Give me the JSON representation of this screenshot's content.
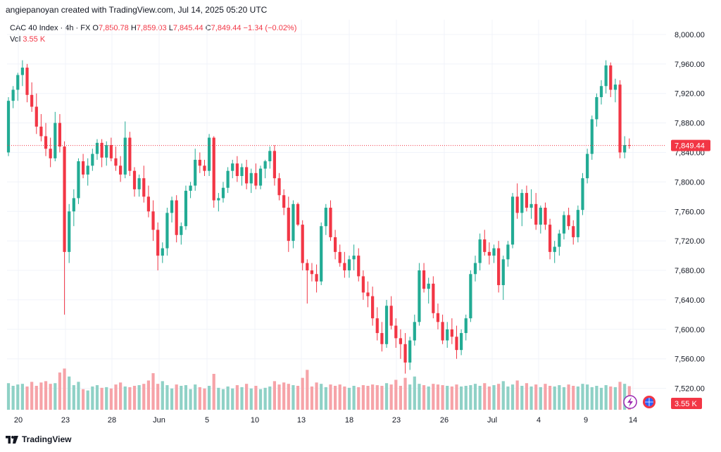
{
  "header": {
    "credit": "angiepanoyan created with TradingView.com, Jul 14, 2025 05:20 UTC"
  },
  "legend": {
    "symbol": "CAC 40 Index · 4h · FX",
    "o_label": "O",
    "o_value": "7,850.78",
    "h_label": "H",
    "h_value": "7,859.03",
    "l_label": "L",
    "l_value": "7,845.44",
    "c_label": "C",
    "c_value": "7,849.44",
    "change": "−1.34 (−0.02%)",
    "vol_label": "Vol",
    "vol_value": "3.55 K"
  },
  "footer": {
    "brand": "TradingView"
  },
  "icons": [
    "flash-icon",
    "globe-icon",
    "tradingview-logo-icon"
  ],
  "colors": {
    "up": "#22ab94",
    "down": "#f23645",
    "up_vol": "#8fd1c6",
    "down_vol": "#f6a3a8",
    "grid": "#f0f3fa"
  },
  "chart_data": {
    "type": "candlestick",
    "title": "CAC 40 Index · 4h · FX",
    "ylim": [
      7490,
      8020
    ],
    "y_ticks": [
      "8,000.00",
      "7,960.00",
      "7,920.00",
      "7,880.00",
      "7,840.00",
      "7,800.00",
      "7,760.00",
      "7,720.00",
      "7,680.00",
      "7,640.00",
      "7,600.00",
      "7,560.00",
      "7,520.00"
    ],
    "x_ticks": [
      "20",
      "23",
      "28",
      "Jun",
      "5",
      "10",
      "13",
      "18",
      "23",
      "26",
      "Jul",
      "4",
      "9",
      "14"
    ],
    "last_price": "7,849.44",
    "last_volume": "3.55 K",
    "volume_max": 9,
    "grid": true,
    "candles": [
      [
        7840,
        7915,
        7835,
        7910,
        4.0
      ],
      [
        7910,
        7930,
        7900,
        7925,
        3.6
      ],
      [
        7925,
        7948,
        7910,
        7945,
        3.8
      ],
      [
        7945,
        7965,
        7930,
        7955,
        3.9
      ],
      [
        7955,
        7960,
        7908,
        7918,
        3.5
      ],
      [
        7918,
        7935,
        7895,
        7902,
        4.2
      ],
      [
        7902,
        7920,
        7865,
        7875,
        3.6
      ],
      [
        7875,
        7892,
        7855,
        7862,
        4.1
      ],
      [
        7862,
        7880,
        7835,
        7845,
        4.3
      ],
      [
        7845,
        7860,
        7820,
        7832,
        3.9
      ],
      [
        7832,
        7895,
        7828,
        7880,
        4.0
      ],
      [
        7880,
        7892,
        7840,
        7848,
        5.6
      ],
      [
        7848,
        7855,
        7620,
        7705,
        6.2
      ],
      [
        7705,
        7770,
        7690,
        7760,
        5.0
      ],
      [
        7760,
        7790,
        7740,
        7778,
        3.7
      ],
      [
        7778,
        7832,
        7770,
        7828,
        4.2
      ],
      [
        7828,
        7838,
        7805,
        7810,
        3.1
      ],
      [
        7810,
        7832,
        7795,
        7822,
        2.9
      ],
      [
        7822,
        7845,
        7815,
        7838,
        3.5
      ],
      [
        7838,
        7858,
        7830,
        7853,
        3.7
      ],
      [
        7853,
        7858,
        7820,
        7833,
        3.3
      ],
      [
        7833,
        7855,
        7822,
        7850,
        3.4
      ],
      [
        7850,
        7860,
        7828,
        7832,
        3.2
      ],
      [
        7832,
        7848,
        7815,
        7822,
        3.8
      ],
      [
        7822,
        7835,
        7800,
        7810,
        4.1
      ],
      [
        7810,
        7882,
        7805,
        7860,
        3.5
      ],
      [
        7860,
        7868,
        7808,
        7815,
        3.4
      ],
      [
        7815,
        7820,
        7780,
        7790,
        3.6
      ],
      [
        7790,
        7810,
        7780,
        7805,
        3.7
      ],
      [
        7805,
        7822,
        7772,
        7780,
        3.9
      ],
      [
        7780,
        7795,
        7752,
        7760,
        4.4
      ],
      [
        7760,
        7775,
        7720,
        7735,
        5.5
      ],
      [
        7735,
        7745,
        7680,
        7700,
        3.9
      ],
      [
        7700,
        7718,
        7690,
        7710,
        4.3
      ],
      [
        7710,
        7765,
        7700,
        7758,
        3.7
      ],
      [
        7758,
        7780,
        7745,
        7775,
        3.2
      ],
      [
        7775,
        7782,
        7718,
        7728,
        3.8
      ],
      [
        7728,
        7745,
        7715,
        7740,
        3.6
      ],
      [
        7740,
        7795,
        7735,
        7788,
        3.7
      ],
      [
        7788,
        7800,
        7778,
        7795,
        3.1
      ],
      [
        7795,
        7845,
        7788,
        7830,
        3.8
      ],
      [
        7830,
        7840,
        7812,
        7822,
        3.4
      ],
      [
        7822,
        7830,
        7808,
        7815,
        3.2
      ],
      [
        7815,
        7865,
        7808,
        7860,
        3.6
      ],
      [
        7860,
        7862,
        7765,
        7775,
        5.4
      ],
      [
        7775,
        7785,
        7760,
        7778,
        3.3
      ],
      [
        7778,
        7800,
        7772,
        7792,
        3.1
      ],
      [
        7792,
        7820,
        7785,
        7815,
        3.5
      ],
      [
        7815,
        7830,
        7805,
        7825,
        3.2
      ],
      [
        7825,
        7835,
        7800,
        7808,
        3.7
      ],
      [
        7808,
        7825,
        7795,
        7820,
        3.4
      ],
      [
        7820,
        7830,
        7790,
        7798,
        3.9
      ],
      [
        7798,
        7818,
        7785,
        7812,
        3.2
      ],
      [
        7812,
        7825,
        7790,
        7795,
        3.6
      ],
      [
        7795,
        7822,
        7790,
        7818,
        3.1
      ],
      [
        7818,
        7830,
        7805,
        7828,
        3.3
      ],
      [
        7828,
        7848,
        7818,
        7842,
        3.5
      ],
      [
        7842,
        7850,
        7795,
        7805,
        4.3
      ],
      [
        7805,
        7812,
        7775,
        7782,
        3.8
      ],
      [
        7782,
        7790,
        7755,
        7765,
        4.1
      ],
      [
        7765,
        7780,
        7705,
        7720,
        3.9
      ],
      [
        7720,
        7775,
        7710,
        7770,
        3.7
      ],
      [
        7770,
        7772,
        7740,
        7742,
        3.6
      ],
      [
        7742,
        7748,
        7680,
        7690,
        4.8
      ],
      [
        7690,
        7695,
        7635,
        7680,
        6.0
      ],
      [
        7680,
        7690,
        7665,
        7675,
        3.5
      ],
      [
        7675,
        7688,
        7650,
        7665,
        4.1
      ],
      [
        7665,
        7745,
        7660,
        7740,
        3.9
      ],
      [
        7740,
        7770,
        7728,
        7765,
        3.4
      ],
      [
        7765,
        7775,
        7720,
        7725,
        3.8
      ],
      [
        7725,
        7735,
        7695,
        7705,
        3.6
      ],
      [
        7705,
        7715,
        7685,
        7690,
        3.8
      ],
      [
        7690,
        7705,
        7670,
        7680,
        3.5
      ],
      [
        7680,
        7700,
        7670,
        7695,
        3.3
      ],
      [
        7695,
        7715,
        7680,
        7700,
        3.6
      ],
      [
        7700,
        7710,
        7665,
        7672,
        3.4
      ],
      [
        7672,
        7680,
        7640,
        7650,
        3.7
      ],
      [
        7650,
        7665,
        7630,
        7645,
        3.6
      ],
      [
        7645,
        7658,
        7605,
        7615,
        3.8
      ],
      [
        7615,
        7630,
        7585,
        7595,
        3.7
      ],
      [
        7595,
        7610,
        7570,
        7580,
        3.6
      ],
      [
        7580,
        7640,
        7575,
        7632,
        4.0
      ],
      [
        7632,
        7645,
        7600,
        7605,
        3.8
      ],
      [
        7605,
        7615,
        7575,
        7588,
        4.5
      ],
      [
        7588,
        7600,
        7560,
        7580,
        3.6
      ],
      [
        7580,
        7595,
        7540,
        7555,
        4.8
      ],
      [
        7555,
        7590,
        7545,
        7585,
        3.8
      ],
      [
        7585,
        7620,
        7578,
        7610,
        5.0
      ],
      [
        7610,
        7690,
        7605,
        7680,
        3.9
      ],
      [
        7680,
        7690,
        7650,
        7655,
        3.7
      ],
      [
        7655,
        7670,
        7635,
        7662,
        3.5
      ],
      [
        7662,
        7672,
        7615,
        7622,
        3.9
      ],
      [
        7622,
        7635,
        7600,
        7610,
        3.8
      ],
      [
        7610,
        7620,
        7580,
        7585,
        3.7
      ],
      [
        7585,
        7610,
        7575,
        7600,
        3.6
      ],
      [
        7600,
        7615,
        7580,
        7590,
        3.5
      ],
      [
        7590,
        7605,
        7560,
        7572,
        3.8
      ],
      [
        7572,
        7600,
        7565,
        7595,
        3.5
      ],
      [
        7595,
        7620,
        7585,
        7615,
        3.6
      ],
      [
        7615,
        7680,
        7610,
        7675,
        3.7
      ],
      [
        7675,
        7700,
        7665,
        7690,
        3.9
      ],
      [
        7690,
        7730,
        7680,
        7722,
        3.6
      ],
      [
        7722,
        7735,
        7700,
        7705,
        4.0
      ],
      [
        7705,
        7718,
        7688,
        7700,
        3.5
      ],
      [
        7700,
        7715,
        7690,
        7710,
        3.7
      ],
      [
        7710,
        7720,
        7650,
        7660,
        3.9
      ],
      [
        7660,
        7700,
        7640,
        7695,
        4.3
      ],
      [
        7695,
        7720,
        7685,
        7715,
        3.5
      ],
      [
        7715,
        7785,
        7710,
        7780,
        3.8
      ],
      [
        7780,
        7798,
        7750,
        7758,
        4.4
      ],
      [
        7758,
        7790,
        7740,
        7785,
        3.6
      ],
      [
        7785,
        7795,
        7760,
        7765,
        4.0
      ],
      [
        7765,
        7790,
        7750,
        7770,
        3.5
      ],
      [
        7770,
        7785,
        7735,
        7742,
        3.8
      ],
      [
        7742,
        7768,
        7730,
        7765,
        3.4
      ],
      [
        7765,
        7772,
        7735,
        7742,
        3.9
      ],
      [
        7742,
        7750,
        7695,
        7705,
        3.6
      ],
      [
        7705,
        7720,
        7690,
        7712,
        3.5
      ],
      [
        7712,
        7735,
        7700,
        7730,
        3.7
      ],
      [
        7730,
        7760,
        7722,
        7755,
        3.4
      ],
      [
        7755,
        7765,
        7735,
        7740,
        3.8
      ],
      [
        7740,
        7748,
        7715,
        7725,
        3.6
      ],
      [
        7725,
        7768,
        7718,
        7762,
        3.5
      ],
      [
        7762,
        7812,
        7755,
        7805,
        3.9
      ],
      [
        7805,
        7845,
        7798,
        7838,
        3.8
      ],
      [
        7838,
        7890,
        7830,
        7885,
        3.4
      ],
      [
        7885,
        7920,
        7875,
        7915,
        3.6
      ],
      [
        7915,
        7938,
        7905,
        7930,
        3.3
      ],
      [
        7930,
        7965,
        7920,
        7958,
        3.7
      ],
      [
        7958,
        7962,
        7915,
        7925,
        3.5
      ],
      [
        7925,
        7940,
        7908,
        7932,
        3.4
      ],
      [
        7932,
        7938,
        7832,
        7840,
        4.2
      ],
      [
        7840,
        7862,
        7832,
        7850,
        3.9
      ],
      [
        7850,
        7859,
        7845,
        7849,
        3.55
      ]
    ]
  }
}
